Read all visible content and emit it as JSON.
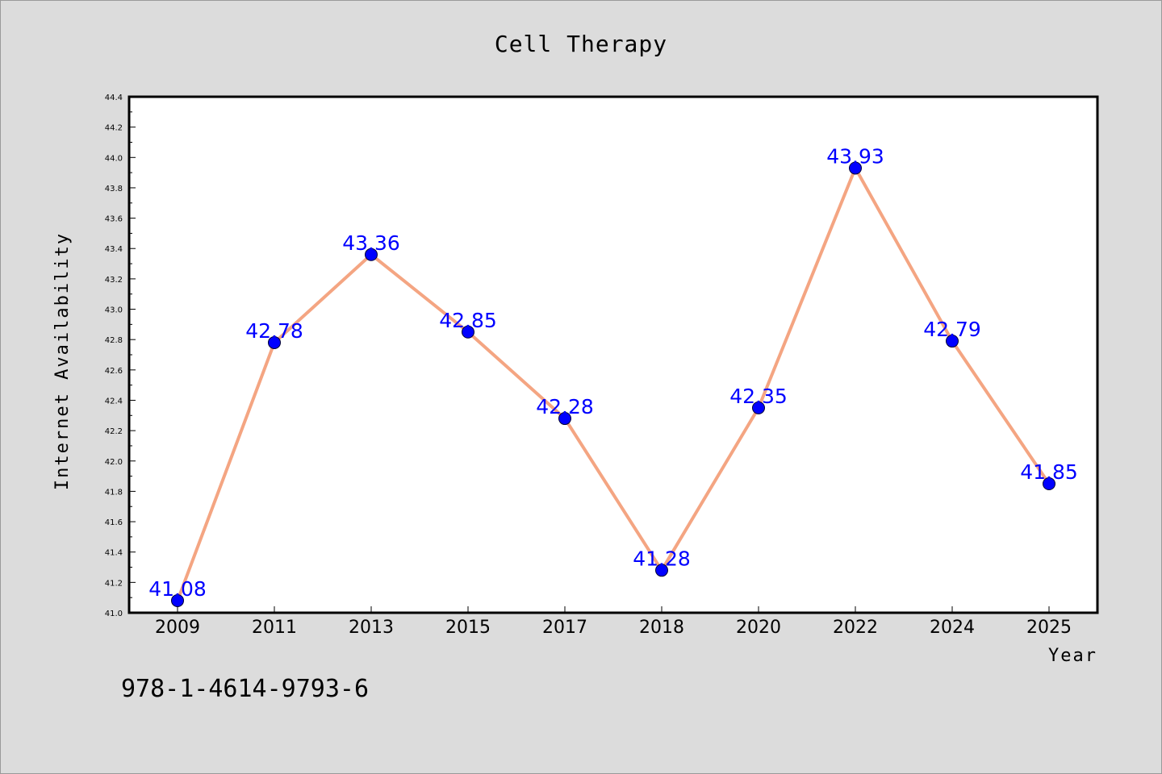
{
  "colors": {
    "background": "#dcdcdc",
    "plot_background": "#ffffff",
    "line": "#f4a582",
    "marker": "#0000ff",
    "data_label": "#0000ff"
  },
  "footer": {
    "isbn": "978-1-4614-9793-6"
  },
  "chart_data": {
    "type": "line",
    "title": "Cell Therapy",
    "xlabel": "Year",
    "ylabel": "Internet Availability",
    "categories": [
      "2009",
      "2011",
      "2013",
      "2015",
      "2017",
      "2018",
      "2020",
      "2022",
      "2024",
      "2025"
    ],
    "series": [
      {
        "values": [
          41.08,
          42.78,
          43.36,
          42.85,
          42.28,
          41.28,
          42.35,
          43.93,
          42.79,
          41.85
        ]
      }
    ],
    "data_labels": [
      "41.08",
      "42.78",
      "43.36",
      "42.85",
      "42.28",
      "41.28",
      "42.35",
      "43.93",
      "42.79",
      "41.85"
    ],
    "ylim": [
      41.0,
      44.4
    ],
    "yticks": [
      "41.0",
      "41.2",
      "41.4",
      "41.6",
      "41.8",
      "42.0",
      "42.2",
      "42.4",
      "42.6",
      "42.8",
      "43.0",
      "43.2",
      "43.4",
      "43.6",
      "43.8",
      "44.0",
      "44.2",
      "44.4"
    ],
    "grid": false,
    "legend": "none"
  }
}
